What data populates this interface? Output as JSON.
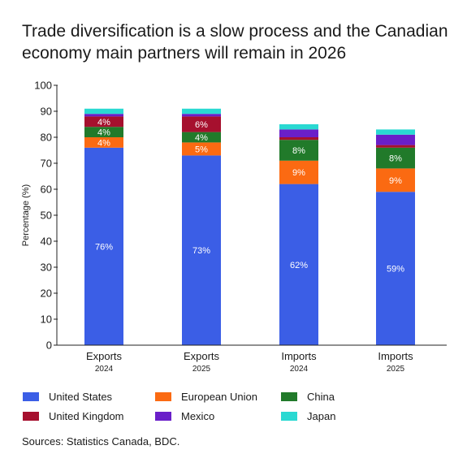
{
  "title_lines": [
    "Trade diversification is a slow process and the Canadian",
    "economy main partners will remain in 2026"
  ],
  "source": "Sources: Statistics Canada, BDC.",
  "chart_data": {
    "type": "bar",
    "stacked": true,
    "title": "Trade diversification is a slow process and the Canadian economy main partners will remain in 2026",
    "xlabel": "",
    "ylabel": "Percentage (%)",
    "ylim": [
      0,
      100
    ],
    "yticks": [
      0,
      10,
      20,
      30,
      40,
      50,
      60,
      70,
      80,
      90,
      100
    ],
    "grid": false,
    "legend_position": "bottom",
    "categories": [
      {
        "name": "Exports",
        "year": "2024"
      },
      {
        "name": "Exports",
        "year": "2025"
      },
      {
        "name": "Imports",
        "year": "2024"
      },
      {
        "name": "Imports",
        "year": "2025"
      }
    ],
    "series": [
      {
        "name": "United States",
        "color": "#3b5ee6",
        "values": [
          76,
          73,
          62,
          59
        ],
        "labels": [
          "76%",
          "73%",
          "62%",
          "59%"
        ]
      },
      {
        "name": "European Union",
        "color": "#fb6a12",
        "values": [
          4,
          5,
          9,
          9
        ],
        "labels": [
          "4%",
          "5%",
          "9%",
          "9%"
        ]
      },
      {
        "name": "China",
        "color": "#217a2a",
        "values": [
          4,
          4,
          8,
          8
        ],
        "labels": [
          "4%",
          "4%",
          "8%",
          "8%"
        ]
      },
      {
        "name": "United Kingdom",
        "color": "#a6102e",
        "values": [
          4,
          6,
          1,
          1
        ],
        "labels": [
          "4%",
          "6%",
          "",
          ""
        ]
      },
      {
        "name": "Mexico",
        "color": "#6a1fc9",
        "values": [
          1,
          1,
          3,
          4
        ],
        "labels": [
          "",
          "",
          "",
          ""
        ]
      },
      {
        "name": "Japan",
        "color": "#2ad9d2",
        "values": [
          2,
          2,
          2,
          2
        ],
        "labels": [
          "",
          "",
          "",
          ""
        ]
      }
    ]
  }
}
